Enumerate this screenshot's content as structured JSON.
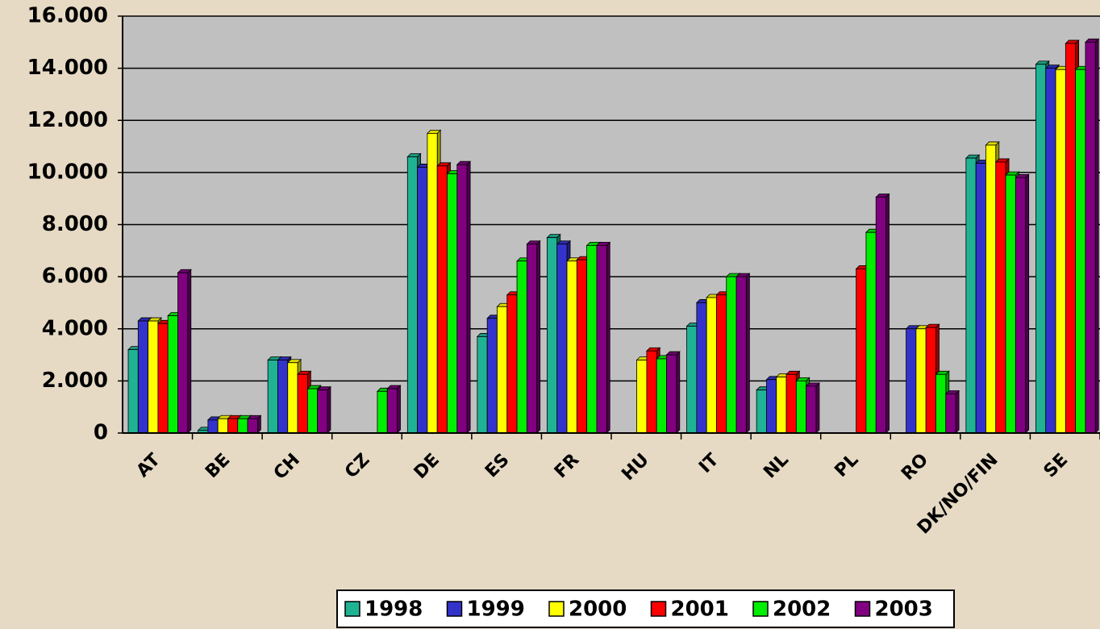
{
  "chart_data": {
    "type": "bar",
    "categories": [
      "AT",
      "BE",
      "CH",
      "CZ",
      "DE",
      "ES",
      "FR",
      "HU",
      "IT",
      "NL",
      "PL",
      "RO",
      "DK/NO/FIN",
      "SE"
    ],
    "series": [
      {
        "name": "1998",
        "color": "#1fb394",
        "values": [
          3200,
          100,
          2800,
          null,
          10600,
          3700,
          7500,
          null,
          4100,
          1650,
          null,
          null,
          10550,
          14150
        ]
      },
      {
        "name": "1999",
        "color": "#3333cc",
        "values": [
          4300,
          500,
          2800,
          null,
          10200,
          4400,
          7250,
          null,
          5000,
          2050,
          null,
          4000,
          10350,
          14000
        ]
      },
      {
        "name": "2000",
        "color": "#ffff00",
        "values": [
          4300,
          550,
          2700,
          null,
          11500,
          4850,
          6600,
          2800,
          5200,
          2150,
          null,
          4000,
          11050,
          13950
        ]
      },
      {
        "name": "2001",
        "color": "#ff0000",
        "values": [
          4200,
          550,
          2250,
          null,
          10250,
          5300,
          6650,
          3150,
          5300,
          2250,
          6300,
          4050,
          10400,
          14950
        ]
      },
      {
        "name": "2002",
        "color": "#00ee00",
        "values": [
          4500,
          550,
          1700,
          1600,
          9950,
          6600,
          7200,
          2850,
          6000,
          2000,
          7700,
          2250,
          9900,
          13950
        ]
      },
      {
        "name": "2003",
        "color": "#800080",
        "values": [
          6150,
          550,
          1650,
          1700,
          10300,
          7250,
          7200,
          3000,
          6000,
          1800,
          9050,
          1500,
          9800,
          15000
        ]
      }
    ],
    "ylim": [
      0,
      16000
    ],
    "yticks": [
      0,
      {
        "value": 2000,
        "label": "2.000"
      },
      {
        "value": 4000,
        "label": "4.000"
      },
      {
        "value": 6000,
        "label": "6.000"
      },
      {
        "value": 8000,
        "label": "8.000"
      },
      {
        "value": 10000,
        "label": "10.000"
      },
      {
        "value": 12000,
        "label": "12.000"
      },
      {
        "value": 14000,
        "label": "14.000"
      },
      {
        "value": 16000,
        "label": "16.000"
      }
    ],
    "grid": true,
    "legend": "bottom"
  }
}
